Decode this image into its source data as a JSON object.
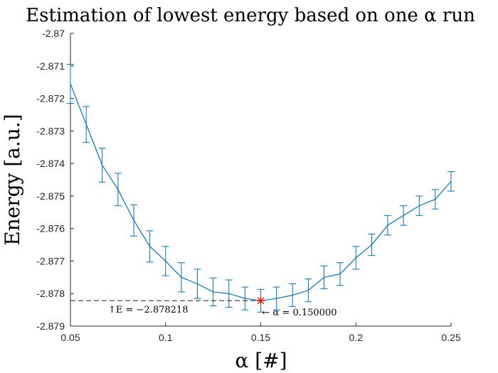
{
  "chart_data": {
    "type": "line",
    "title": "Estimation of lowest energy based on one α run",
    "xlabel": "α [#]",
    "ylabel": "Energy [a.u.]",
    "xlim": [
      0.05,
      0.25
    ],
    "ylim": [
      -2.879,
      -2.87
    ],
    "x_ticks": [
      "0.05",
      "0.1",
      "0.15",
      "0.2",
      "0.25"
    ],
    "y_ticks": [
      "-2.87",
      "-2.871",
      "-2.872",
      "-2.873",
      "-2.874",
      "-2.875",
      "-2.876",
      "-2.877",
      "-2.878",
      "-2.879"
    ],
    "grid": false,
    "series": [
      {
        "color": "#0072BD",
        "x": [
          0.05,
          0.0583,
          0.0667,
          0.075,
          0.0833,
          0.0917,
          0.1,
          0.1083,
          0.1167,
          0.125,
          0.1333,
          0.1417,
          0.15,
          0.1583,
          0.1667,
          0.175,
          0.1833,
          0.1917,
          0.2,
          0.2083,
          0.2167,
          0.225,
          0.2333,
          0.2417,
          0.25
        ],
        "values": [
          -2.87155,
          -2.8728,
          -2.87405,
          -2.8748,
          -2.87575,
          -2.87655,
          -2.877,
          -2.8775,
          -2.8777,
          -2.87795,
          -2.878,
          -2.87815,
          -2.87822,
          -2.87815,
          -2.87805,
          -2.8779,
          -2.8775,
          -2.8774,
          -2.8769,
          -2.8765,
          -2.8759,
          -2.8756,
          -2.8753,
          -2.8751,
          -2.87455
        ],
        "errors": [
          0.0006,
          0.00055,
          0.00052,
          0.0005,
          0.00048,
          0.00048,
          0.00045,
          0.00045,
          0.00045,
          0.00043,
          0.00042,
          0.00035,
          0.00035,
          0.00035,
          0.00035,
          0.00035,
          0.00035,
          0.00035,
          0.00035,
          0.00033,
          0.0003,
          0.0003,
          0.0003,
          0.0003,
          0.0003
        ]
      }
    ],
    "minimum": {
      "x": 0.15,
      "y": -2.878218,
      "marker_color": "#FF0000",
      "label_energy": "↑E = −2.878218",
      "label_alpha": "← α = 0.150000"
    }
  }
}
